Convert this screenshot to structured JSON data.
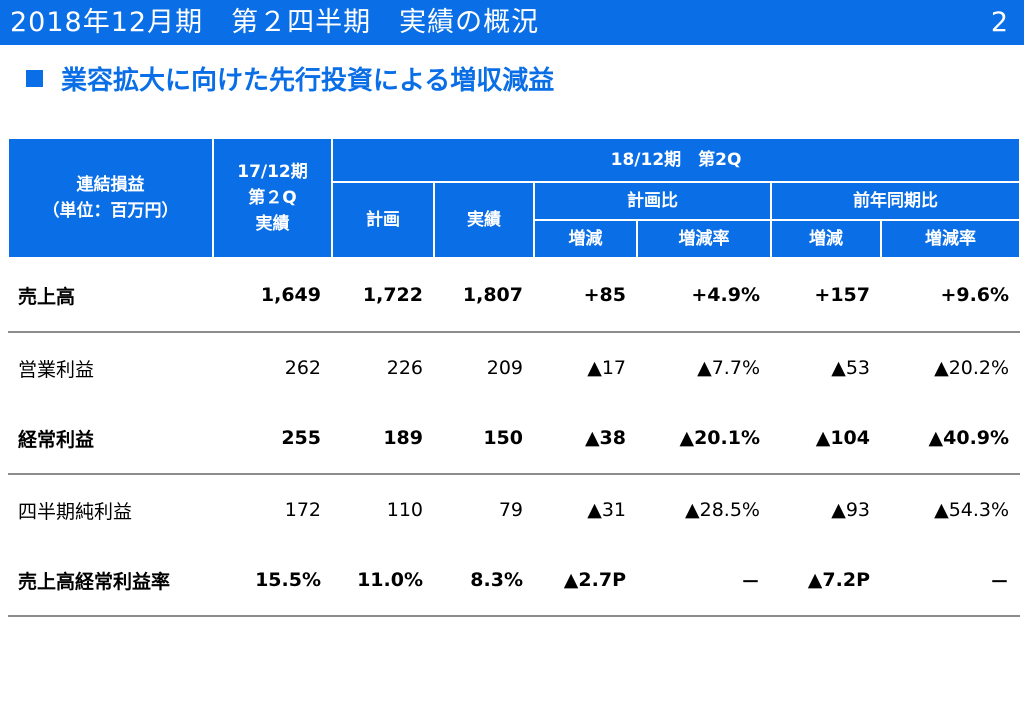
{
  "header": {
    "title": "2018年12月期　第２四半期　実績の概況",
    "page_number": "2",
    "subtitle": "業容拡大に向けた先行投資による増収減益"
  },
  "table": {
    "corner": [
      "連結損益",
      "（単位：百万円）"
    ],
    "prev_col": [
      "17/12期",
      "第２Q",
      "実績"
    ],
    "current_group": "18/12期　第2Q",
    "col_plan": "計画",
    "col_actual": "実績",
    "group_vs_plan": "計画比",
    "group_vs_prev": "前年同期比",
    "sub_change": "増減",
    "sub_rate": "増減率",
    "rows": [
      {
        "label": "売上高",
        "prev": "1,649",
        "plan": "1,722",
        "actual": "1,807",
        "plan_diff": "+85",
        "plan_rate": "+4.9%",
        "yoy_diff": "+157",
        "yoy_rate": "+9.6%"
      },
      {
        "label": "営業利益",
        "prev": "262",
        "plan": "226",
        "actual": "209",
        "plan_diff": "▲17",
        "plan_rate": "▲7.7%",
        "yoy_diff": "▲53",
        "yoy_rate": "▲20.2%"
      },
      {
        "label": "経常利益",
        "prev": "255",
        "plan": "189",
        "actual": "150",
        "plan_diff": "▲38",
        "plan_rate": "▲20.1%",
        "yoy_diff": "▲104",
        "yoy_rate": "▲40.9%"
      },
      {
        "label": "四半期純利益",
        "prev": "172",
        "plan": "110",
        "actual": "79",
        "plan_diff": "▲31",
        "plan_rate": "▲28.5%",
        "yoy_diff": "▲93",
        "yoy_rate": "▲54.3%"
      },
      {
        "label": "売上高経常利益率",
        "prev": "15.5%",
        "plan": "11.0%",
        "actual": "8.3%",
        "plan_diff": "▲2.7P",
        "plan_rate": "－",
        "yoy_diff": "▲7.2P",
        "yoy_rate": "－"
      }
    ]
  }
}
